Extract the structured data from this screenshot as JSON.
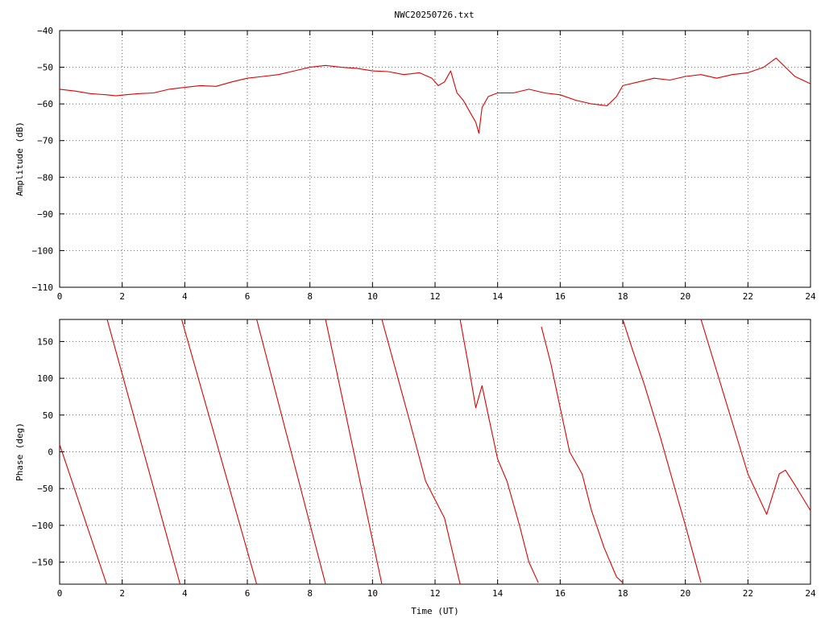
{
  "title": "NWC20250726.txt",
  "colors": {
    "trace": "#e00000",
    "axis": "#000000",
    "background": "#ffffff"
  },
  "chart_data": [
    {
      "type": "line",
      "ylabel": "Amplitude (dB)",
      "xlabel": "",
      "xlim": [
        0,
        24
      ],
      "ylim": [
        -110,
        -40
      ],
      "xticks": [
        0,
        2,
        4,
        6,
        8,
        10,
        12,
        14,
        16,
        18,
        20,
        22,
        24
      ],
      "yticks": [
        -110,
        -100,
        -90,
        -80,
        -70,
        -60,
        -50,
        -40
      ],
      "ytick_labels": [
        "−110",
        "−100",
        "−90",
        "−80",
        "−70",
        "−60",
        "−50",
        "−40"
      ],
      "grid": true,
      "series": [
        {
          "x": [
            0,
            0.5,
            1,
            1.5,
            1.8,
            2,
            2.5,
            3,
            3.5,
            4,
            4.5,
            5,
            5.5,
            6,
            6.5,
            7,
            7.5,
            8,
            8.5,
            9,
            9.5,
            10,
            10.5,
            11,
            11.5,
            11.9,
            12.1,
            12.3,
            12.5,
            12.7,
            12.9,
            13.1,
            13.3,
            13.4,
            13.5,
            13.7,
            14,
            14.5,
            15,
            15.5,
            16,
            16.5,
            17,
            17.5,
            17.8,
            18,
            18.5,
            19,
            19.5,
            20,
            20.5,
            21,
            21.5,
            22,
            22.5,
            22.9,
            23.2,
            23.5,
            24
          ],
          "y": [
            -56,
            -56.5,
            -57.2,
            -57.5,
            -57.8,
            -57.6,
            -57.2,
            -57,
            -56,
            -55.5,
            -55,
            -55.2,
            -54,
            -53,
            -52.5,
            -52,
            -51,
            -50,
            -49.5,
            -50,
            -50.3,
            -51,
            -51.2,
            -52,
            -51.5,
            -53,
            -55,
            -54,
            -51,
            -57,
            -59,
            -62,
            -65,
            -68,
            -61,
            -58,
            -57,
            -57,
            -56,
            -57,
            -57.5,
            -59,
            -60,
            -60.5,
            -58,
            -55,
            -54,
            -53,
            -53.5,
            -52.5,
            -52,
            -53,
            -52,
            -51.5,
            -50,
            -47.5,
            -50,
            -52.5,
            -54.5
          ]
        }
      ]
    },
    {
      "type": "line",
      "ylabel": "Phase (deg)",
      "xlabel": "Time (UT)",
      "xlim": [
        0,
        24
      ],
      "ylim": [
        -180,
        180
      ],
      "xticks": [
        0,
        2,
        4,
        6,
        8,
        10,
        12,
        14,
        16,
        18,
        20,
        22,
        24
      ],
      "yticks": [
        -150,
        -100,
        -50,
        0,
        50,
        100,
        150
      ],
      "ytick_labels": [
        "−150",
        "−100",
        "−50",
        "0",
        "50",
        "100",
        "150"
      ],
      "grid": true,
      "series": [
        {
          "x": [
            0,
            1.5,
            null,
            1.52,
            3.85,
            null,
            3.9,
            6.3,
            null,
            6.3,
            8.5,
            null,
            8.5,
            10.3,
            null,
            10.3,
            11.2,
            11.7,
            12.3,
            12.8,
            null,
            12.8,
            13.1,
            13.3,
            13.5,
            13.7,
            14,
            14.3,
            14.7,
            15,
            15.3,
            null,
            15.4,
            15.7,
            16,
            16.3,
            16.7,
            17,
            17.4,
            17.8,
            18,
            null,
            18,
            18.3,
            18.7,
            19.2,
            19.6,
            20,
            20.5,
            null,
            20.5,
            21,
            21.5,
            22,
            22.6,
            23,
            23.2,
            23.5,
            24
          ],
          "y": [
            10,
            -180,
            null,
            180,
            -180,
            null,
            180,
            -180,
            null,
            180,
            -180,
            null,
            180,
            -180,
            null,
            180,
            40,
            -40,
            -90,
            -180,
            null,
            180,
            110,
            60,
            90,
            50,
            -10,
            -40,
            -100,
            -150,
            -178,
            null,
            170,
            120,
            60,
            0,
            -30,
            -80,
            -130,
            -170,
            -178,
            null,
            180,
            140,
            90,
            20,
            -40,
            -100,
            -178,
            null,
            180,
            110,
            40,
            -30,
            -85,
            -30,
            -25,
            -45,
            -80
          ]
        }
      ]
    }
  ]
}
